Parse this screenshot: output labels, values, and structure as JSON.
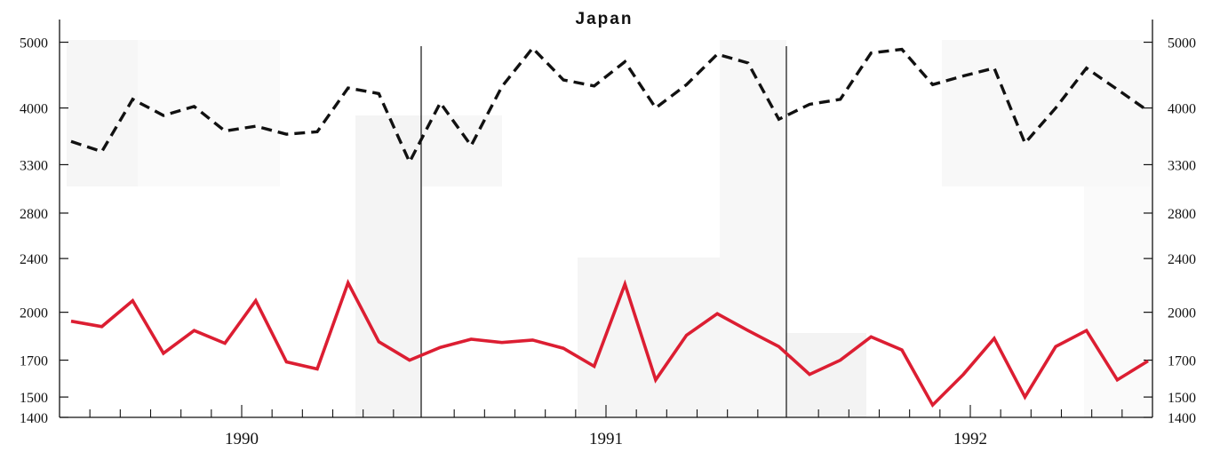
{
  "chart_data": {
    "type": "line",
    "title": "Japan",
    "xlabel": "",
    "ylabel": "",
    "y_scale": "log",
    "ylim": [
      1400,
      5400
    ],
    "y_ticks": [
      1400,
      1500,
      1700,
      2000,
      2400,
      2800,
      3300,
      4000,
      5000
    ],
    "y_ticks_right": [
      1400,
      1500,
      1700,
      2000,
      2400,
      2800,
      3300,
      4000,
      5000
    ],
    "x_labels": [
      "1990",
      "1991",
      "1992"
    ],
    "months_per_year": 12,
    "grid": false,
    "series": [
      {
        "style": "dashed",
        "color": "#111111",
        "values": [
          3570,
          3450,
          4120,
          3900,
          4020,
          3700,
          3760,
          3660,
          3690,
          4280,
          4200,
          3330,
          4070,
          3520,
          4300,
          4900,
          4400,
          4310,
          4680,
          4000,
          4330,
          4800,
          4660,
          3850,
          4050,
          4120,
          4820,
          4880,
          4330,
          4460,
          4580,
          3550,
          4000,
          4580,
          4260,
          3960
        ]
      },
      {
        "style": "solid",
        "color": "#dc1e32",
        "values": [
          1940,
          1905,
          2080,
          1740,
          1880,
          1800,
          2080,
          1690,
          1650,
          2210,
          1810,
          1700,
          1775,
          1825,
          1805,
          1820,
          1770,
          1665,
          2200,
          1590,
          1850,
          1990,
          1880,
          1780,
          1620,
          1700,
          1840,
          1760,
          1460,
          1620,
          1830,
          1500,
          1780,
          1880,
          1590,
          1695
        ]
      }
    ]
  }
}
